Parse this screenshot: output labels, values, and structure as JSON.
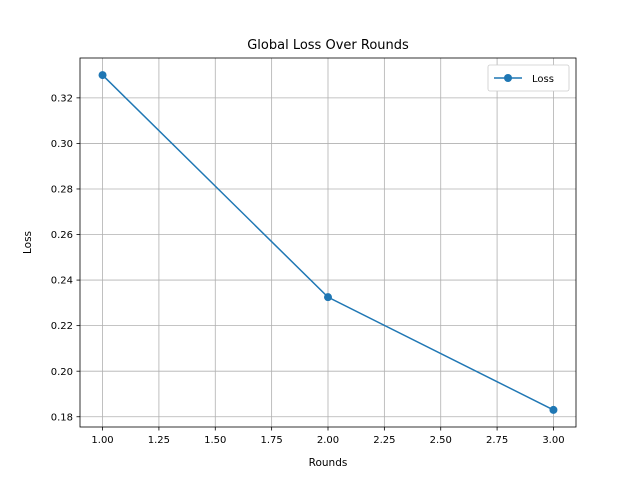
{
  "chart_data": {
    "type": "line",
    "title": "Global Loss Over Rounds",
    "xlabel": "Rounds",
    "ylabel": "Loss",
    "xlim": [
      0.9,
      3.1
    ],
    "ylim": [
      0.1755,
      0.3375
    ],
    "xticks": [
      1.0,
      1.25,
      1.5,
      1.75,
      2.0,
      2.25,
      2.5,
      2.75,
      3.0
    ],
    "xtick_labels": [
      "1.00",
      "1.25",
      "1.50",
      "1.75",
      "2.00",
      "2.25",
      "2.50",
      "2.75",
      "3.00"
    ],
    "yticks": [
      0.18,
      0.2,
      0.22,
      0.24,
      0.26,
      0.28,
      0.3,
      0.32
    ],
    "ytick_labels": [
      "0.18",
      "0.20",
      "0.22",
      "0.24",
      "0.26",
      "0.28",
      "0.30",
      "0.32"
    ],
    "grid": true,
    "legend_position": "top-right",
    "series": [
      {
        "name": "Loss",
        "color": "#1f77b4",
        "marker": "circle",
        "x": [
          1.0,
          2.0,
          3.0
        ],
        "y": [
          0.33,
          0.2325,
          0.183
        ]
      }
    ]
  }
}
